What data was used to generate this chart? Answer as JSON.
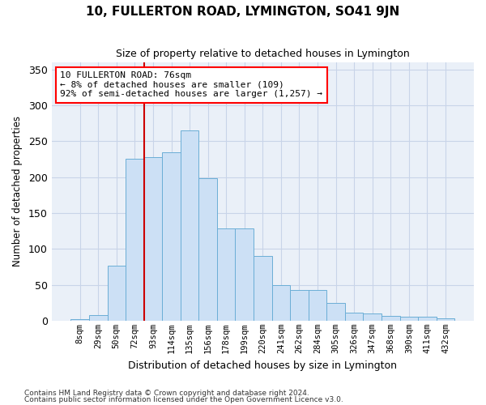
{
  "title": "10, FULLERTON ROAD, LYMINGTON, SO41 9JN",
  "subtitle": "Size of property relative to detached houses in Lymington",
  "xlabel": "Distribution of detached houses by size in Lymington",
  "ylabel": "Number of detached properties",
  "footnote1": "Contains HM Land Registry data © Crown copyright and database right 2024.",
  "footnote2": "Contains public sector information licensed under the Open Government Licence v3.0.",
  "categories": [
    "8sqm",
    "29sqm",
    "50sqm",
    "72sqm",
    "93sqm",
    "114sqm",
    "135sqm",
    "156sqm",
    "178sqm",
    "199sqm",
    "220sqm",
    "241sqm",
    "262sqm",
    "284sqm",
    "305sqm",
    "326sqm",
    "347sqm",
    "368sqm",
    "390sqm",
    "411sqm",
    "432sqm"
  ],
  "values": [
    2,
    8,
    77,
    226,
    228,
    235,
    265,
    199,
    129,
    129,
    90,
    50,
    43,
    43,
    25,
    11,
    10,
    7,
    5,
    5,
    3
  ],
  "bar_color": "#cce0f5",
  "bar_edge_color": "#6baed6",
  "grid_color": "#c8d4e8",
  "bg_color": "#eaf0f8",
  "vline_color": "#cc0000",
  "vline_x_index": 3.5,
  "annotation_title": "10 FULLERTON ROAD: 76sqm",
  "annotation_line1": "← 8% of detached houses are smaller (109)",
  "annotation_line2": "92% of semi-detached houses are larger (1,257) →",
  "ylim": [
    0,
    360
  ],
  "yticks": [
    0,
    50,
    100,
    150,
    200,
    250,
    300,
    350
  ]
}
